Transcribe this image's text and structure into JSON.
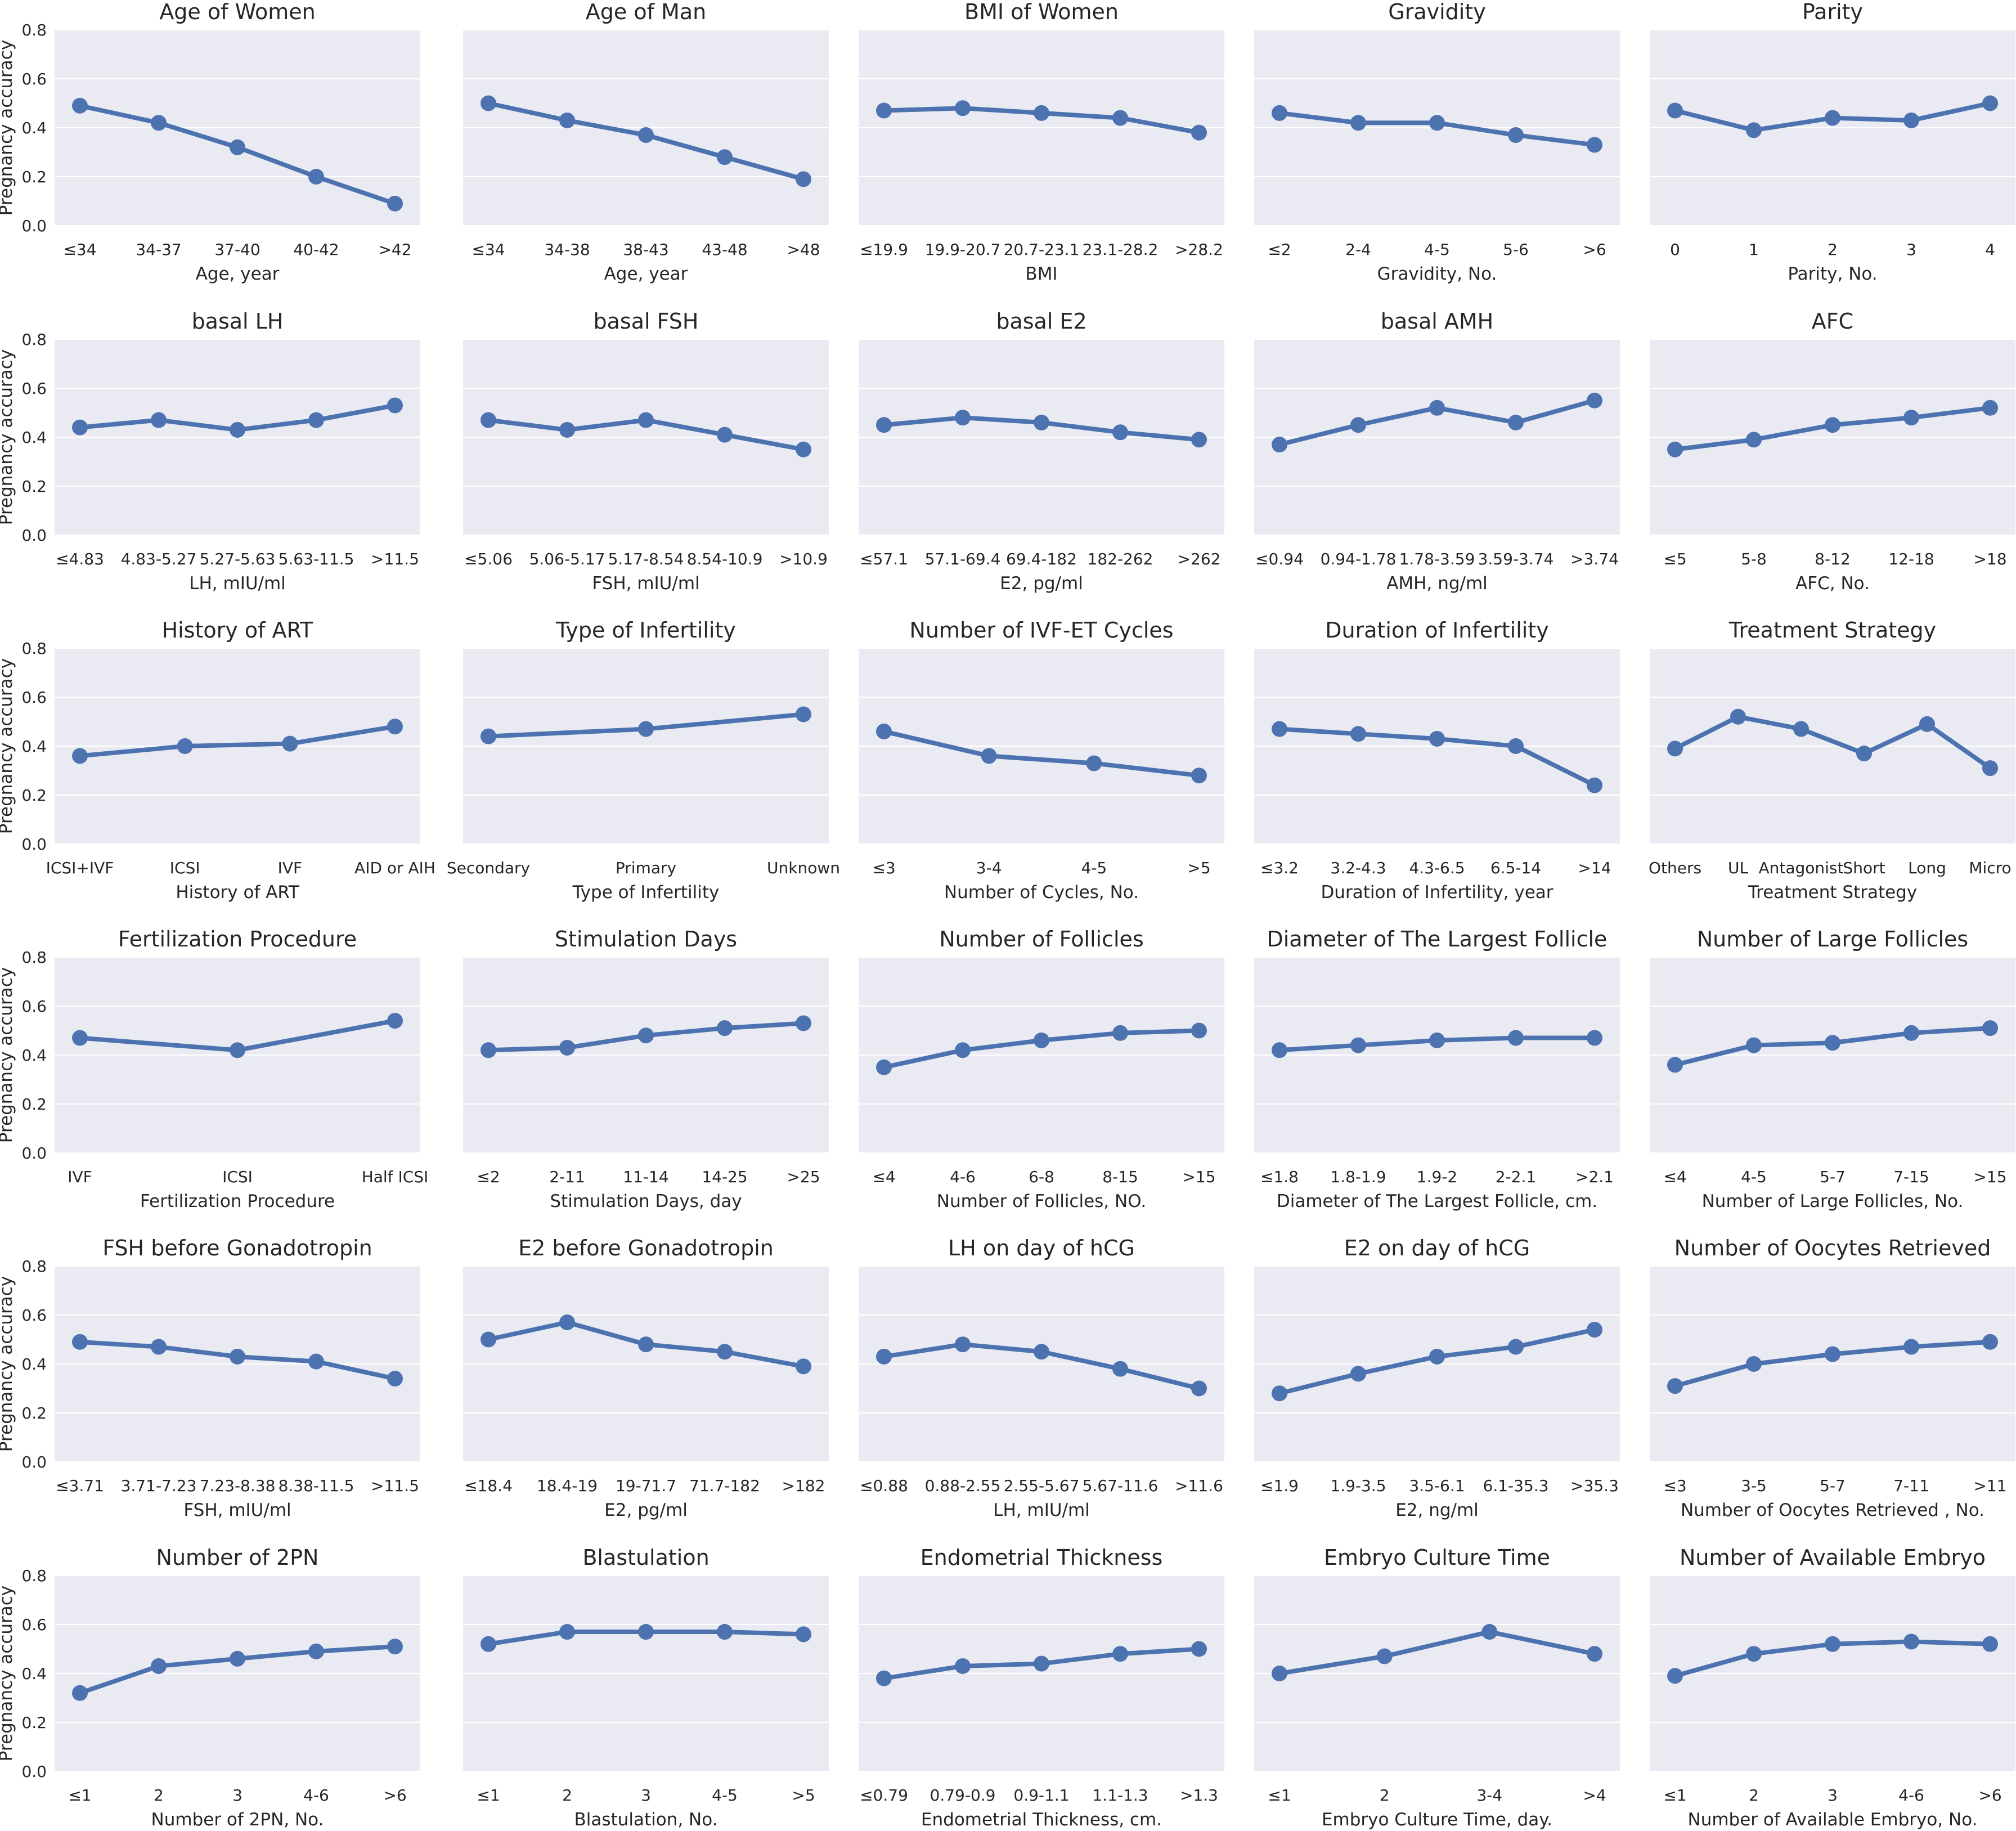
{
  "figure": {
    "ylabel": "Pregnancy accuracy",
    "yticks": [
      "0.0",
      "0.2",
      "0.4",
      "0.6",
      "0.8"
    ],
    "ylim": [
      0,
      0.8
    ],
    "colors": {
      "background": "#eaeaf2",
      "grid": "#ffffff",
      "line": "#4c72b0",
      "text": "#262626"
    }
  },
  "chart_data": [
    {
      "type": "line",
      "title": "Age of Women",
      "xlabel": "Age, year",
      "categories": [
        "≤34",
        "34-37",
        "37-40",
        "40-42",
        ">42"
      ],
      "values": [
        0.49,
        0.42,
        0.32,
        0.2,
        0.09
      ]
    },
    {
      "type": "line",
      "title": "Age  of Man",
      "xlabel": "Age, year",
      "categories": [
        "≤34",
        "34-38",
        "38-43",
        "43-48",
        ">48"
      ],
      "values": [
        0.5,
        0.43,
        0.37,
        0.28,
        0.19
      ]
    },
    {
      "type": "line",
      "title": "BMI of Women",
      "xlabel": "BMI",
      "categories": [
        "≤19.9",
        "19.9-20.7",
        "20.7-23.1",
        "23.1-28.2",
        ">28.2"
      ],
      "values": [
        0.47,
        0.48,
        0.46,
        0.44,
        0.38
      ]
    },
    {
      "type": "line",
      "title": "Gravidity",
      "xlabel": "Gravidity, No.",
      "categories": [
        "≤2",
        "2-4",
        "4-5",
        "5-6",
        ">6"
      ],
      "values": [
        0.46,
        0.42,
        0.42,
        0.37,
        0.33
      ]
    },
    {
      "type": "line",
      "title": "Parity",
      "xlabel": "Parity, No.",
      "categories": [
        "0",
        "1",
        "2",
        "3",
        "4"
      ],
      "values": [
        0.47,
        0.39,
        0.44,
        0.43,
        0.5
      ]
    },
    {
      "type": "line",
      "title": "basal LH",
      "xlabel": "LH, mIU/ml",
      "categories": [
        "≤4.83",
        "4.83-5.27",
        "5.27-5.63",
        "5.63-11.5",
        ">11.5"
      ],
      "values": [
        0.44,
        0.47,
        0.43,
        0.47,
        0.53
      ]
    },
    {
      "type": "line",
      "title": "basal FSH",
      "xlabel": "FSH, mIU/ml",
      "categories": [
        "≤5.06",
        "5.06-5.17",
        "5.17-8.54",
        "8.54-10.9",
        ">10.9"
      ],
      "values": [
        0.47,
        0.43,
        0.47,
        0.41,
        0.35
      ]
    },
    {
      "type": "line",
      "title": "basal E2",
      "xlabel": "E2, pg/ml",
      "categories": [
        "≤57.1",
        "57.1-69.4",
        "69.4-182",
        "182-262",
        ">262"
      ],
      "values": [
        0.45,
        0.48,
        0.46,
        0.42,
        0.39
      ]
    },
    {
      "type": "line",
      "title": "basal AMH",
      "xlabel": "AMH, ng/ml",
      "categories": [
        "≤0.94",
        "0.94-1.78",
        "1.78-3.59",
        "3.59-3.74",
        ">3.74"
      ],
      "values": [
        0.37,
        0.45,
        0.52,
        0.46,
        0.55
      ]
    },
    {
      "type": "line",
      "title": "AFC",
      "xlabel": "AFC, No.",
      "categories": [
        "≤5",
        "5-8",
        "8-12",
        "12-18",
        ">18"
      ],
      "values": [
        0.35,
        0.39,
        0.45,
        0.48,
        0.52
      ]
    },
    {
      "type": "line",
      "title": "History of ART",
      "xlabel": "History of ART",
      "categories": [
        "ICSI+IVF",
        "ICSI",
        "IVF",
        "AID or AIH"
      ],
      "values": [
        0.36,
        0.4,
        0.41,
        0.48
      ]
    },
    {
      "type": "line",
      "title": "Type of Infertility",
      "xlabel": "Type of Infertility",
      "categories": [
        "Secondary",
        "Primary",
        "Unknown"
      ],
      "values": [
        0.44,
        0.47,
        0.53
      ]
    },
    {
      "type": "line",
      "title": "Number of IVF-ET Cycles",
      "xlabel": "Number of Cycles, No.",
      "categories": [
        "≤3",
        "3-4",
        "4-5",
        ">5"
      ],
      "values": [
        0.46,
        0.36,
        0.33,
        0.28
      ]
    },
    {
      "type": "line",
      "title": "Duration of Infertility",
      "xlabel": "Duration of Infertility, year",
      "categories": [
        "≤3.2",
        "3.2-4.3",
        "4.3-6.5",
        "6.5-14",
        ">14"
      ],
      "values": [
        0.47,
        0.45,
        0.43,
        0.4,
        0.24
      ]
    },
    {
      "type": "line",
      "title": "Treatment Strategy",
      "xlabel": "Treatment Strategy",
      "categories": [
        "Others",
        "UL",
        "Antagonist",
        "Short",
        "Long",
        "Micro"
      ],
      "values": [
        0.39,
        0.52,
        0.47,
        0.37,
        0.49,
        0.31
      ]
    },
    {
      "type": "line",
      "title": "Fertilization Procedure",
      "xlabel": "Fertilization Procedure",
      "categories": [
        "IVF",
        "ICSI",
        "Half ICSI"
      ],
      "values": [
        0.47,
        0.42,
        0.54
      ]
    },
    {
      "type": "line",
      "title": "Stimulation Days",
      "xlabel": "Stimulation Days, day",
      "categories": [
        "≤2",
        "2-11",
        "11-14",
        "14-25",
        ">25"
      ],
      "values": [
        0.42,
        0.43,
        0.48,
        0.51,
        0.53
      ]
    },
    {
      "type": "line",
      "title": "Number of Follicles",
      "xlabel": "Number of Follicles, NO.",
      "categories": [
        "≤4",
        "4-6",
        "6-8",
        "8-15",
        ">15"
      ],
      "values": [
        0.35,
        0.42,
        0.46,
        0.49,
        0.5
      ]
    },
    {
      "type": "line",
      "title": "Diameter of The Largest Follicle",
      "xlabel": "Diameter of The Largest Follicle, cm.",
      "categories": [
        "≤1.8",
        "1.8-1.9",
        "1.9-2",
        "2-2.1",
        ">2.1"
      ],
      "values": [
        0.42,
        0.44,
        0.46,
        0.47,
        0.47
      ]
    },
    {
      "type": "line",
      "title": "Number of Large Follicles",
      "xlabel": "Number of Large Follicles, No.",
      "categories": [
        "≤4",
        "4-5",
        "5-7",
        "7-15",
        ">15"
      ],
      "values": [
        0.36,
        0.44,
        0.45,
        0.49,
        0.51
      ]
    },
    {
      "type": "line",
      "title": "FSH before Gonadotropin",
      "xlabel": "FSH, mIU/ml",
      "categories": [
        "≤3.71",
        "3.71-7.23",
        "7.23-8.38",
        "8.38-11.5",
        ">11.5"
      ],
      "values": [
        0.49,
        0.47,
        0.43,
        0.41,
        0.34
      ]
    },
    {
      "type": "line",
      "title": "E2 before Gonadotropin",
      "xlabel": "E2, pg/ml",
      "categories": [
        "≤18.4",
        "18.4-19",
        "19-71.7",
        "71.7-182",
        ">182"
      ],
      "values": [
        0.5,
        0.57,
        0.48,
        0.45,
        0.39
      ]
    },
    {
      "type": "line",
      "title": "LH on day of hCG",
      "xlabel": "LH, mIU/ml",
      "categories": [
        "≤0.88",
        "0.88-2.55",
        "2.55-5.67",
        "5.67-11.6",
        ">11.6"
      ],
      "values": [
        0.43,
        0.48,
        0.45,
        0.38,
        0.3
      ]
    },
    {
      "type": "line",
      "title": "E2  on day of hCG",
      "xlabel": "E2, ng/ml",
      "categories": [
        "≤1.9",
        "1.9-3.5",
        "3.5-6.1",
        "6.1-35.3",
        ">35.3"
      ],
      "values": [
        0.28,
        0.36,
        0.43,
        0.47,
        0.54
      ]
    },
    {
      "type": "line",
      "title": "Number of Oocytes Retrieved",
      "xlabel": "Number of Oocytes Retrieved , No.",
      "categories": [
        "≤3",
        "3-5",
        "5-7",
        "7-11",
        ">11"
      ],
      "values": [
        0.31,
        0.4,
        0.44,
        0.47,
        0.49
      ]
    },
    {
      "type": "line",
      "title": "Number of 2PN",
      "xlabel": "Number of 2PN, No.",
      "categories": [
        "≤1",
        "2",
        "3",
        "4-6",
        ">6"
      ],
      "values": [
        0.32,
        0.43,
        0.46,
        0.49,
        0.51
      ]
    },
    {
      "type": "line",
      "title": "Blastulation",
      "xlabel": "Blastulation, No.",
      "categories": [
        "≤1",
        "2",
        "3",
        "4-5",
        ">5"
      ],
      "values": [
        0.52,
        0.57,
        0.57,
        0.57,
        0.56
      ]
    },
    {
      "type": "line",
      "title": "Endometrial Thickness",
      "xlabel": "Endometrial Thickness, cm.",
      "categories": [
        "≤0.79",
        "0.79-0.9",
        "0.9-1.1",
        "1.1-1.3",
        ">1.3"
      ],
      "values": [
        0.38,
        0.43,
        0.44,
        0.48,
        0.5
      ]
    },
    {
      "type": "line",
      "title": "Embryo Culture Time",
      "xlabel": "Embryo Culture Time, day.",
      "categories": [
        "≤1",
        "2",
        "3-4",
        ">4"
      ],
      "values": [
        0.4,
        0.47,
        0.57,
        0.48
      ]
    },
    {
      "type": "line",
      "title": "Number of Available Embryo",
      "xlabel": "Number of Available Embryo, No.",
      "categories": [
        "≤1",
        "2",
        "3",
        "4-6",
        ">6"
      ],
      "values": [
        0.39,
        0.48,
        0.52,
        0.53,
        0.52
      ]
    }
  ]
}
